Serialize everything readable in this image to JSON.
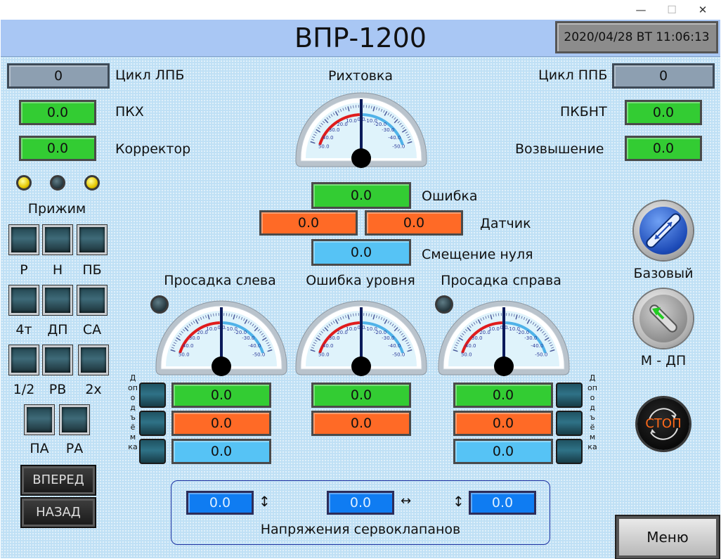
{
  "window": {
    "minimize": "—",
    "maximize": "☐",
    "close": "✕"
  },
  "header": {
    "title": "ВПР-1200",
    "clock": "2020/04/28 ВТ  11:06:13"
  },
  "cycles": {
    "left_label": "Цикл ЛПБ",
    "left_value": "0",
    "right_label": "Цикл ППБ",
    "right_value": "0"
  },
  "left_values": {
    "pkh_label": "ПКХ",
    "pkh_value": "0.0",
    "corrector_label": "Корректор",
    "corrector_value": "0.0"
  },
  "right_values": {
    "pkbnt_label": "ПКБНТ",
    "pkbnt_value": "0.0",
    "elevation_label": "Возвышение",
    "elevation_value": "0.0"
  },
  "clamp": {
    "label": "Прижим",
    "leds": [
      "on",
      "off",
      "on"
    ]
  },
  "button_rows": [
    {
      "labels": [
        "Р",
        "Н",
        "ПБ"
      ]
    },
    {
      "labels": [
        "4т",
        "ДП",
        "СА"
      ]
    },
    {
      "labels": [
        "1/2",
        "РВ",
        "2х"
      ]
    },
    {
      "labels": [
        "ПА",
        "РА"
      ]
    }
  ],
  "nav": {
    "forward": "ВПЕРЕД",
    "back": "НАЗАД"
  },
  "gauges": {
    "rikhtovka": "Рихтовка",
    "left": "Просадка слева",
    "level": "Ошибка уровня",
    "right": "Просадка справа",
    "scale_left": [
      "50.0",
      "40.0",
      "30.0",
      "20.0",
      "10.0"
    ],
    "scale_top": "0.0",
    "scale_right": [
      "-10.0",
      "-20.0",
      "-30.0",
      "-40.0",
      "-50.0"
    ]
  },
  "center": {
    "error_label": "Ошибка",
    "error_value": "0.0",
    "sensor_label": "Датчик",
    "sensor_value_1": "0.0",
    "sensor_value_2": "0.0",
    "zero_label": "Смещение нуля",
    "zero_value": "0.0"
  },
  "left_group": {
    "green": "0.0",
    "orange": "0.0",
    "cyan": "0.0",
    "vertical": "Доподъёмка"
  },
  "level_group": {
    "green": "0.0",
    "orange": "0.0"
  },
  "right_group": {
    "green": "0.0",
    "orange": "0.0",
    "cyan": "0.0",
    "vertical": "Доподъёмка"
  },
  "controls": {
    "base_label": "Базовый",
    "mdp_label": "М - ДП",
    "stop_label": "СТОП"
  },
  "servo": {
    "label": "Напряжения сервоклапанов",
    "v1": "0.0",
    "v2": "0.0",
    "v3": "0.0",
    "arrow_v": "↕",
    "arrow_h": "↔"
  },
  "menu": {
    "label": "Меню"
  },
  "colors": {
    "green": "#33cc33",
    "orange": "#ff6a26",
    "cyan": "#56c3f5",
    "blue": "#0f7cf2",
    "panel": "#bfe0f5",
    "header": "#a9c7f4"
  }
}
